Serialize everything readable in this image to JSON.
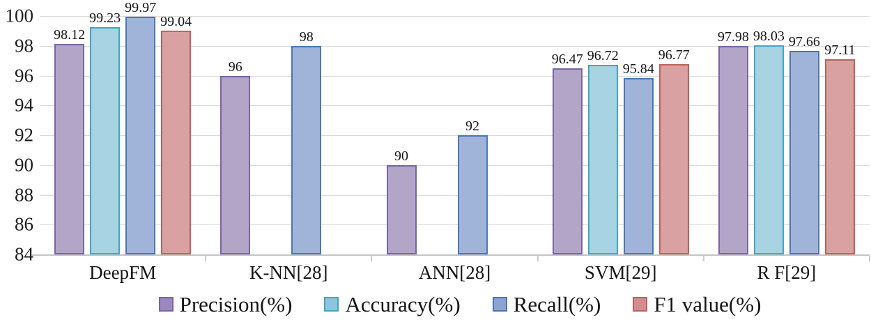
{
  "chart_data": {
    "type": "bar",
    "title": "",
    "xlabel": "",
    "ylabel": "",
    "categories": [
      "DeepFM",
      "K-NN[28]",
      "ANN[28]",
      "SVM[29]",
      "R F[29]"
    ],
    "series": [
      {
        "name": "Precision(%)",
        "values": [
          98.12,
          96,
          90,
          96.47,
          97.98
        ],
        "fill": "#b2a5c8",
        "border": "#7965a3",
        "legend_fill": "#9d89c0"
      },
      {
        "name": "Accuracy(%)",
        "values": [
          99.23,
          null,
          null,
          96.72,
          98.03
        ],
        "fill": "#a7d3e2",
        "border": "#42a7c3",
        "legend_fill": "#8bc6dc"
      },
      {
        "name": "Recall(%)",
        "values": [
          99.97,
          98,
          92,
          95.84,
          97.66
        ],
        "fill": "#a0b4d9",
        "border": "#4b76b5",
        "legend_fill": "#8ca3cf"
      },
      {
        "name": "F1 value(%)",
        "values": [
          99.04,
          null,
          null,
          96.77,
          97.11
        ],
        "fill": "#d9a1a1",
        "border": "#c0605e",
        "legend_fill": "#cf8d8d"
      }
    ],
    "ylim": [
      84,
      100
    ],
    "yticks": [
      84,
      86,
      88,
      90,
      92,
      94,
      96,
      98,
      100
    ],
    "grid": true,
    "data_labels": true,
    "legend_position": "bottom"
  },
  "style_colors": {
    "grid": "#d9d9d9",
    "axis": "#c4c4c4",
    "text": "#1b1b1b",
    "background": "#ffffff"
  }
}
